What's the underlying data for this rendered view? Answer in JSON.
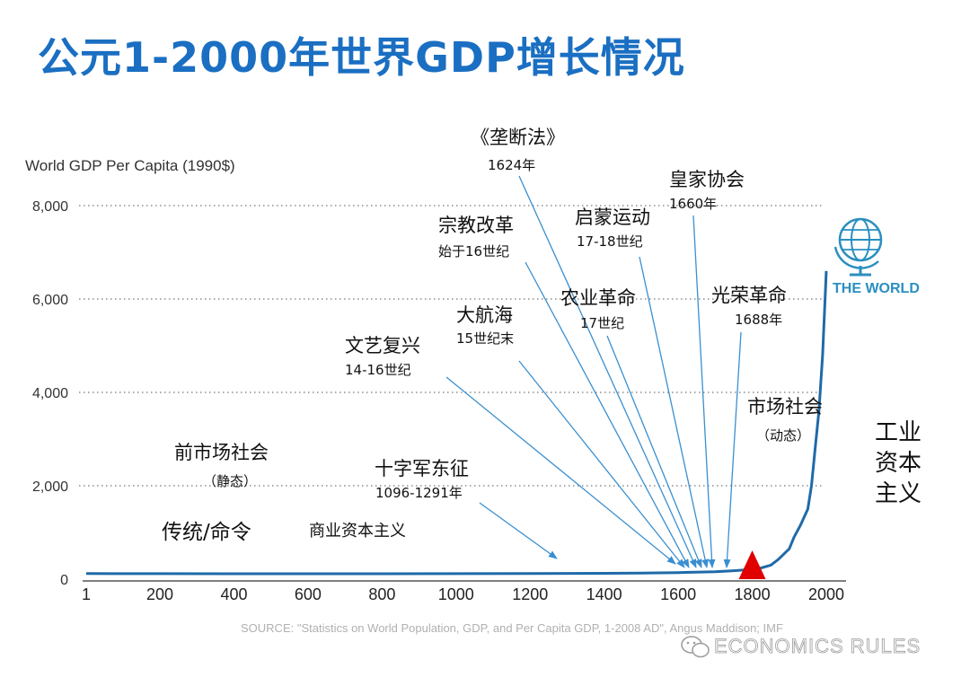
{
  "title": "公元1-2000年世界GDP增长情况",
  "chart_data": {
    "type": "line",
    "ylabel": "World GDP Per Capita (1990$)",
    "xlim": [
      1,
      2000
    ],
    "ylim": [
      0,
      8000
    ],
    "x_ticks": [
      "1",
      "200",
      "400",
      "600",
      "800",
      "1000",
      "1200",
      "1400",
      "1600",
      "1800",
      "2000"
    ],
    "y_ticks": [
      "8,000",
      "6,000",
      "4,000",
      "2,000",
      "0"
    ],
    "grid": "dotted horizontal",
    "series": [
      {
        "x": [
          1,
          200,
          400,
          600,
          800,
          1000,
          1200,
          1400,
          1500,
          1600,
          1700,
          1750,
          1800,
          1820,
          1850,
          1870,
          1900,
          1913,
          1930,
          1950,
          1960,
          1970,
          1980,
          1990,
          2000
        ],
        "y": [
          120,
          118,
          116,
          115,
          115,
          117,
          120,
          125,
          130,
          140,
          160,
          180,
          210,
          230,
          300,
          420,
          650,
          900,
          1150,
          1500,
          2000,
          2800,
          3600,
          4800,
          6600
        ]
      }
    ],
    "marker": {
      "x": 1800,
      "label": "red-triangle"
    },
    "annotations": [
      {
        "title": "《垄断法》",
        "sub": "1624年"
      },
      {
        "title": "皇家协会",
        "sub": "1660年"
      },
      {
        "title": "宗教改革",
        "sub": "始于16世纪"
      },
      {
        "title": "启蒙运动",
        "sub": "17-18世纪"
      },
      {
        "title": "农业革命",
        "sub": "17世纪"
      },
      {
        "title": "光荣革命",
        "sub": "1688年"
      },
      {
        "title": "大航海",
        "sub": "15世纪末"
      },
      {
        "title": "文艺复兴",
        "sub": "14-16世纪"
      },
      {
        "title": "市场社会",
        "sub": "（动态）"
      },
      {
        "title": "前市场社会",
        "sub": "（静态）"
      },
      {
        "title": "十字军东征",
        "sub": "1096-1291年"
      },
      {
        "title": "传统/命令",
        "sub": ""
      },
      {
        "title": "商业资本主义",
        "sub": ""
      },
      {
        "title": "工业",
        "sub": ""
      },
      {
        "title": "资本",
        "sub": ""
      },
      {
        "title": "主义",
        "sub": ""
      }
    ],
    "source": "SOURCE: \"Statistics on World Population, GDP, and Per Capita GDP, 1-2008 AD\", Angus Maddison; IMF"
  },
  "logo": {
    "text": "THE WORLD",
    "color": "#2a8fc0"
  },
  "watermark": "ECONOMICS RULES",
  "colors": {
    "title": "#1a6fc2",
    "line": "#1f6aa8",
    "arrow": "#3a8fd0",
    "marker": "#e00000"
  }
}
